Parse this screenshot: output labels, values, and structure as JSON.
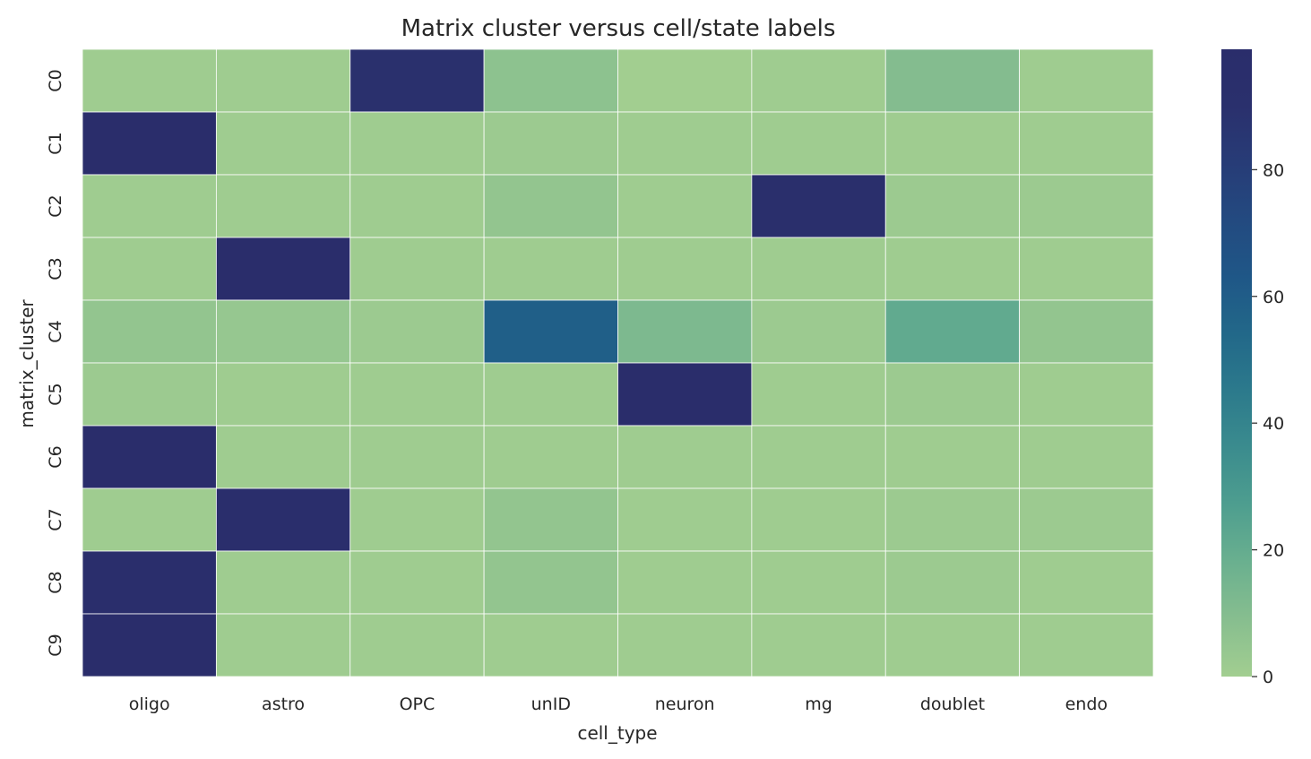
{
  "chart_data": {
    "type": "heatmap",
    "title": "Matrix cluster versus cell/state labels",
    "xlabel": "cell_type",
    "ylabel": "matrix_cluster",
    "x_categories": [
      "oligo",
      "astro",
      "OPC",
      "unID",
      "neuron",
      "mg",
      "doublet",
      "endo"
    ],
    "y_categories": [
      "C0",
      "C1",
      "C2",
      "C3",
      "C4",
      "C5",
      "C6",
      "C7",
      "C8",
      "C9"
    ],
    "values": [
      [
        1,
        1,
        91,
        7,
        0,
        1,
        10,
        1
      ],
      [
        99,
        1,
        1,
        2,
        1,
        1,
        1,
        1
      ],
      [
        1,
        1,
        1,
        5,
        1,
        94,
        2,
        2
      ],
      [
        1,
        98,
        1,
        1,
        1,
        1,
        1,
        1
      ],
      [
        5,
        4,
        2,
        59,
        12,
        2,
        21,
        5
      ],
      [
        2,
        1,
        1,
        1,
        98,
        1,
        2,
        1
      ],
      [
        99,
        1,
        1,
        1,
        1,
        1,
        1,
        1
      ],
      [
        1,
        96,
        1,
        5,
        1,
        1,
        2,
        2
      ],
      [
        96,
        1,
        1,
        5,
        1,
        1,
        2,
        1
      ],
      [
        99,
        1,
        1,
        1,
        1,
        1,
        1,
        1
      ]
    ],
    "colorbar": {
      "min": 0,
      "max": 99,
      "ticks": [
        "0",
        "20",
        "40",
        "60",
        "80"
      ],
      "palette": [
        "#a2ce90",
        "#87be8f",
        "#6ab08f",
        "#4e9e8f",
        "#3b8c8e",
        "#2c7a8c",
        "#226889",
        "#1f5787",
        "#234a80",
        "#273c77",
        "#2a306d",
        "#2a2d6b"
      ]
    },
    "grid": "white cell borders",
    "legend": "colorbar right"
  }
}
